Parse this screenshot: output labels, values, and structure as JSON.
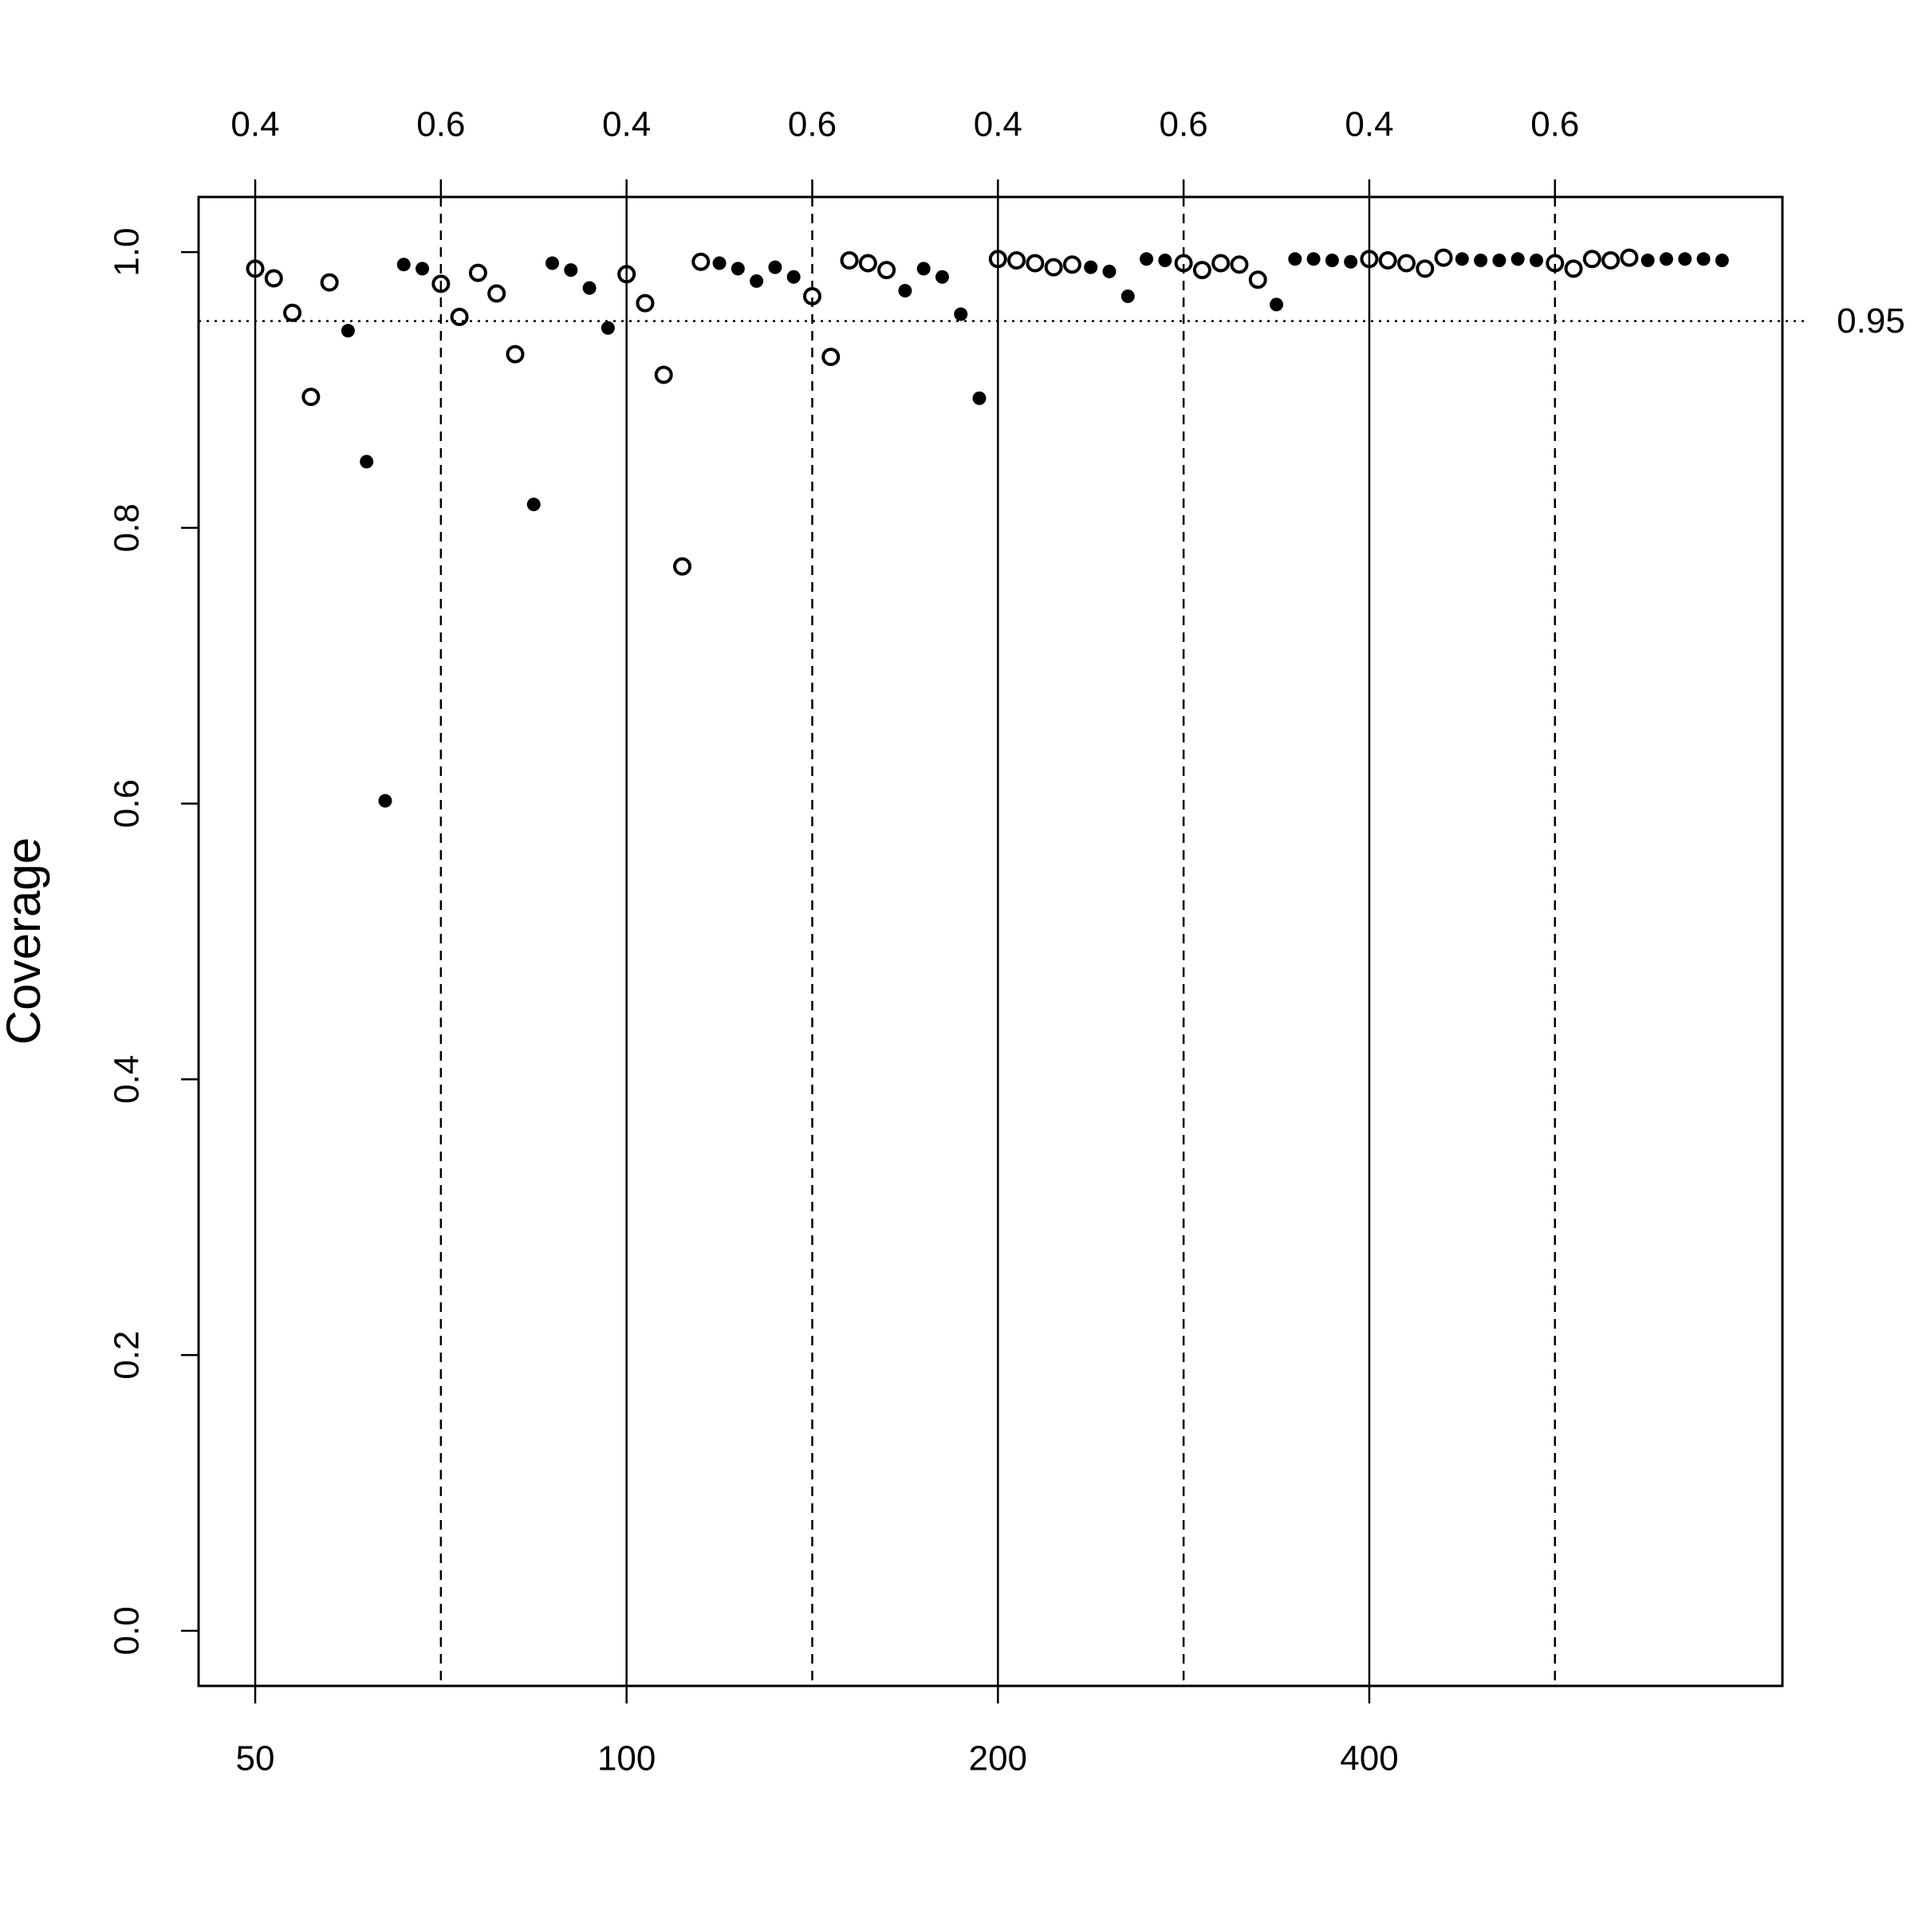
{
  "chart_data": {
    "type": "scatter",
    "y_label": "Coverage",
    "xlim": [
      -2.05,
      83.25
    ],
    "ylim": [
      -0.04,
      1.04
    ],
    "xticks": [
      {
        "value": 1,
        "label": "50"
      },
      {
        "value": 21,
        "label": "100"
      },
      {
        "value": 41,
        "label": "200"
      },
      {
        "value": 61,
        "label": "400"
      }
    ],
    "x2ticks": [
      {
        "value": 1,
        "label": "0.4"
      },
      {
        "value": 11,
        "label": "0.6"
      },
      {
        "value": 21,
        "label": "0.4"
      },
      {
        "value": 31,
        "label": "0.6"
      },
      {
        "value": 41,
        "label": "0.4"
      },
      {
        "value": 51,
        "label": "0.6"
      },
      {
        "value": 61,
        "label": "0.4"
      },
      {
        "value": 71,
        "label": "0.6"
      }
    ],
    "yticks": [
      {
        "value": 0,
        "label": "0.0"
      },
      0.2,
      0.4,
      0.6,
      0.8,
      {
        "value": 1,
        "label": "1.0"
      }
    ],
    "hline": 0.95,
    "color": "#000000",
    "series": [
      {
        "marker": "open",
        "x": [
          1,
          2,
          3,
          4,
          5,
          11,
          12,
          13,
          14,
          15,
          21,
          22,
          23,
          24,
          25,
          31,
          32,
          33,
          34,
          35,
          41,
          42,
          43,
          44,
          45,
          51,
          52,
          53,
          54,
          55,
          61,
          62,
          63,
          64,
          65,
          71,
          72,
          73,
          74,
          75
        ],
        "values": [
          0.988,
          0.981,
          0.956,
          0.895,
          0.978,
          0.977,
          0.953,
          0.985,
          0.97,
          0.926,
          0.984,
          0.963,
          0.911,
          0.772,
          0.993,
          0.968,
          0.924,
          0.994,
          0.992,
          0.987,
          0.995,
          0.994,
          0.992,
          0.989,
          0.991,
          0.992,
          0.987,
          0.992,
          0.991,
          0.98,
          0.995,
          0.994,
          0.992,
          0.988,
          0.996,
          0.992,
          0.988,
          0.995,
          0.994,
          0.996
        ]
      },
      {
        "marker": "filled",
        "x": [
          6,
          7,
          8,
          9,
          10,
          16,
          17,
          18,
          19,
          20,
          26,
          27,
          28,
          29,
          30,
          36,
          37,
          38,
          39,
          40,
          46,
          47,
          48,
          49,
          50,
          56,
          57,
          58,
          59,
          60,
          66,
          67,
          68,
          69,
          70,
          76,
          77,
          78,
          79,
          80
        ],
        "values": [
          0.943,
          0.848,
          0.602,
          0.991,
          0.988,
          0.817,
          0.992,
          0.987,
          0.974,
          0.945,
          0.992,
          0.988,
          0.979,
          0.989,
          0.982,
          0.972,
          0.988,
          0.982,
          0.955,
          0.894,
          0.989,
          0.986,
          0.968,
          0.995,
          0.994,
          0.962,
          0.995,
          0.995,
          0.994,
          0.993,
          0.995,
          0.994,
          0.994,
          0.995,
          0.994,
          0.994,
          0.995,
          0.995,
          0.995,
          0.994
        ]
      }
    ]
  }
}
